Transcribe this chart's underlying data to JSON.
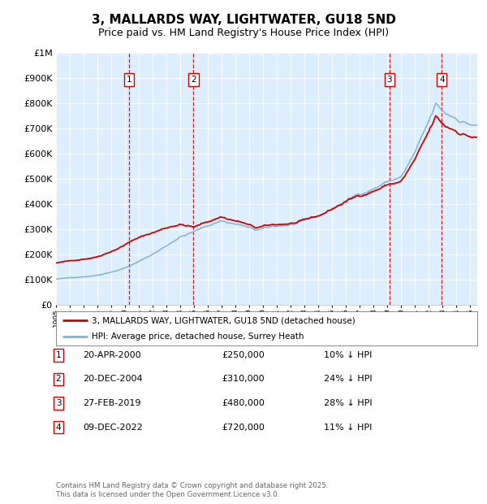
{
  "title": "3, MALLARDS WAY, LIGHTWATER, GU18 5ND",
  "subtitle": "Price paid vs. HM Land Registry's House Price Index (HPI)",
  "ylim": [
    0,
    1000000
  ],
  "yticks": [
    0,
    100000,
    200000,
    300000,
    400000,
    500000,
    600000,
    700000,
    800000,
    900000,
    1000000
  ],
  "ytick_labels": [
    "£0",
    "£100K",
    "£200K",
    "£300K",
    "£400K",
    "£500K",
    "£600K",
    "£700K",
    "£800K",
    "£900K",
    "£1M"
  ],
  "xlim_start": 1995.0,
  "xlim_end": 2025.5,
  "transactions": [
    {
      "id": 1,
      "date": "20-APR-2000",
      "year": 2000.3,
      "price": 250000,
      "pct": "10%",
      "label": "1"
    },
    {
      "id": 2,
      "date": "20-DEC-2004",
      "year": 2004.96,
      "price": 310000,
      "pct": "24%",
      "label": "2"
    },
    {
      "id": 3,
      "date": "27-FEB-2019",
      "year": 2019.15,
      "price": 480000,
      "pct": "28%",
      "label": "3"
    },
    {
      "id": 4,
      "date": "09-DEC-2022",
      "year": 2022.93,
      "price": 720000,
      "pct": "11%",
      "label": "4"
    }
  ],
  "legend_line1": "3, MALLARDS WAY, LIGHTWATER, GU18 5ND (detached house)",
  "legend_line2": "HPI: Average price, detached house, Surrey Heath",
  "footer": "Contains HM Land Registry data © Crown copyright and database right 2025.\nThis data is licensed under the Open Government Licence v3.0.",
  "red_color": "#cc0000",
  "blue_color": "#7fb3d3",
  "bg_chart": "#ddeeff",
  "grid_color": "#ffffff",
  "vline_color": "#cc0000",
  "title_fontsize": 11,
  "subtitle_fontsize": 9
}
